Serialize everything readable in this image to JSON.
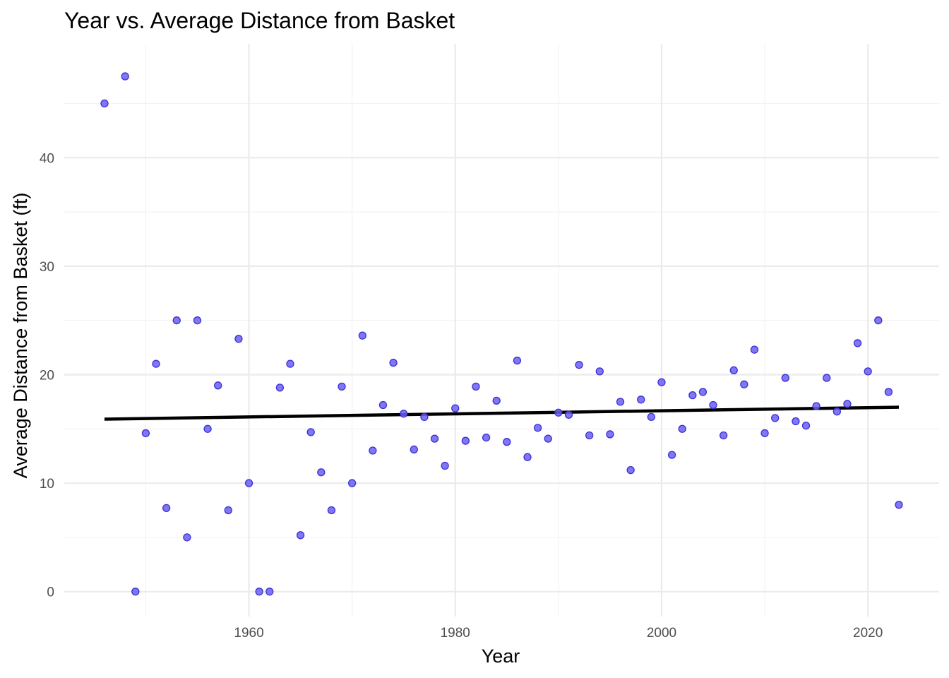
{
  "chart_data": {
    "type": "scatter",
    "title": "Year vs. Average Distance from Basket",
    "xlabel": "Year",
    "ylabel": "Average Distance from Basket (ft)",
    "xlim": [
      1942.1,
      2026.9
    ],
    "ylim": [
      -2.3,
      50.5
    ],
    "x_ticks": [
      1960,
      1980,
      2000,
      2020
    ],
    "x_minor_ticks": [
      1950,
      1970,
      1990,
      2010
    ],
    "y_ticks": [
      0,
      10,
      20,
      30,
      40
    ],
    "y_minor_ticks": [
      5,
      15,
      25,
      35,
      45
    ],
    "grid": true,
    "legend": "none",
    "point_color": "#6a5ff0",
    "point_stroke": "#3a30d8",
    "trend_color": "#000000",
    "trend_line": {
      "x": [
        1946,
        2023
      ],
      "y": [
        15.9,
        17.0
      ]
    },
    "points": [
      [
        1946,
        45.0
      ],
      [
        1948,
        47.5
      ],
      [
        1949,
        0.0
      ],
      [
        1950,
        14.6
      ],
      [
        1951,
        21.0
      ],
      [
        1952,
        7.7
      ],
      [
        1953,
        25.0
      ],
      [
        1954,
        5.0
      ],
      [
        1955,
        25.0
      ],
      [
        1956,
        15.0
      ],
      [
        1957,
        19.0
      ],
      [
        1958,
        7.5
      ],
      [
        1959,
        23.3
      ],
      [
        1960,
        10.0
      ],
      [
        1961,
        0.0
      ],
      [
        1962,
        0.0
      ],
      [
        1963,
        18.8
      ],
      [
        1964,
        21.0
      ],
      [
        1965,
        5.2
      ],
      [
        1966,
        14.7
      ],
      [
        1967,
        11.0
      ],
      [
        1968,
        7.5
      ],
      [
        1969,
        18.9
      ],
      [
        1970,
        10.0
      ],
      [
        1971,
        23.6
      ],
      [
        1972,
        13.0
      ],
      [
        1973,
        17.2
      ],
      [
        1974,
        21.1
      ],
      [
        1975,
        16.4
      ],
      [
        1976,
        13.1
      ],
      [
        1977,
        16.1
      ],
      [
        1978,
        14.1
      ],
      [
        1979,
        11.6
      ],
      [
        1980,
        16.9
      ],
      [
        1981,
        13.9
      ],
      [
        1982,
        18.9
      ],
      [
        1983,
        14.2
      ],
      [
        1984,
        17.6
      ],
      [
        1985,
        13.8
      ],
      [
        1986,
        21.3
      ],
      [
        1987,
        12.4
      ],
      [
        1988,
        15.1
      ],
      [
        1989,
        14.1
      ],
      [
        1990,
        16.5
      ],
      [
        1991,
        16.3
      ],
      [
        1992,
        20.9
      ],
      [
        1993,
        14.4
      ],
      [
        1994,
        20.3
      ],
      [
        1995,
        14.5
      ],
      [
        1996,
        17.5
      ],
      [
        1997,
        11.2
      ],
      [
        1998,
        17.7
      ],
      [
        1999,
        16.1
      ],
      [
        2000,
        19.3
      ],
      [
        2001,
        12.6
      ],
      [
        2002,
        15.0
      ],
      [
        2003,
        18.1
      ],
      [
        2004,
        18.4
      ],
      [
        2005,
        17.2
      ],
      [
        2006,
        14.4
      ],
      [
        2007,
        20.4
      ],
      [
        2008,
        19.1
      ],
      [
        2009,
        22.3
      ],
      [
        2010,
        14.6
      ],
      [
        2011,
        16.0
      ],
      [
        2012,
        19.7
      ],
      [
        2013,
        15.7
      ],
      [
        2014,
        15.3
      ],
      [
        2015,
        17.1
      ],
      [
        2016,
        19.7
      ],
      [
        2017,
        16.6
      ],
      [
        2018,
        17.3
      ],
      [
        2019,
        22.9
      ],
      [
        2020,
        20.3
      ],
      [
        2021,
        25.0
      ],
      [
        2022,
        18.4
      ],
      [
        2023,
        8.0
      ]
    ]
  }
}
